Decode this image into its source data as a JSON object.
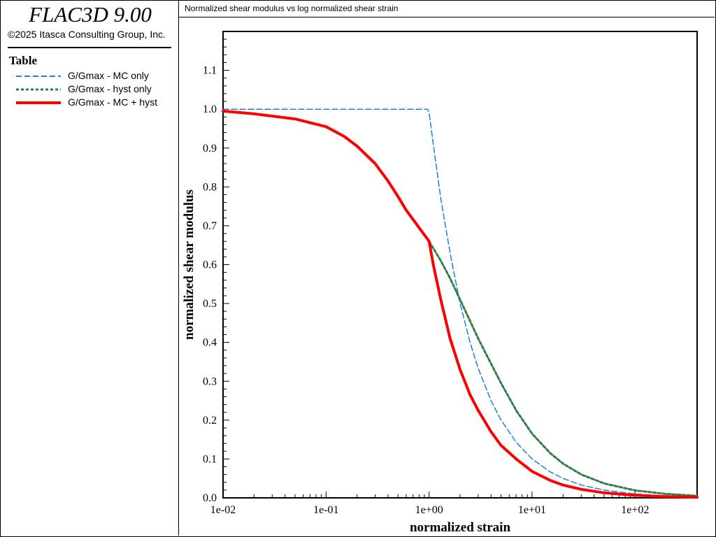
{
  "app": {
    "title": "FLAC3D 9.00",
    "copyright": "©2025 Itasca Consulting Group, Inc."
  },
  "legend": {
    "title": "Table",
    "items": [
      {
        "label": "G/Gmax - MC only",
        "color": "#1a7fe0",
        "style": "dashed"
      },
      {
        "label": "G/Gmax - hyst only",
        "color": "#2e7d4a",
        "style": "dotted"
      },
      {
        "label": "G/Gmax - MC + hyst",
        "color": "#ff0000",
        "style": "solid"
      }
    ]
  },
  "chart_data": {
    "type": "line",
    "title": "Normalized shear modulus vs log normalized shear strain",
    "xlabel": "normalized strain",
    "ylabel": "normalized shear modulus",
    "xscale": "log",
    "xlim": [
      0.01,
      400
    ],
    "ylim": [
      0,
      1.2
    ],
    "xticks": [
      "1e-02",
      "1e-01",
      "1e+00",
      "1e+01",
      "1e+02"
    ],
    "xtick_values": [
      0.01,
      0.1,
      1,
      10,
      100
    ],
    "yticks": [
      "0.0",
      "0.1",
      "0.2",
      "0.3",
      "0.4",
      "0.5",
      "0.6",
      "0.7",
      "0.8",
      "0.9",
      "1.0",
      "1.1"
    ],
    "ytick_values": [
      0,
      0.1,
      0.2,
      0.3,
      0.4,
      0.5,
      0.6,
      0.7,
      0.8,
      0.9,
      1.0,
      1.1
    ],
    "series": [
      {
        "name": "G/Gmax - MC only",
        "color": "#1a7fe0",
        "style": "dashed",
        "x": [
          0.01,
          0.1,
          0.97,
          1.0,
          1.1,
          1.3,
          1.6,
          2.0,
          2.5,
          3.0,
          4.0,
          5.0,
          7.0,
          10,
          15,
          20,
          30,
          50,
          100,
          200,
          400
        ],
        "y": [
          1.0,
          1.0,
          1.0,
          0.99,
          0.91,
          0.77,
          0.63,
          0.5,
          0.4,
          0.333,
          0.25,
          0.2,
          0.143,
          0.1,
          0.067,
          0.05,
          0.033,
          0.02,
          0.01,
          0.005,
          0.0025
        ]
      },
      {
        "name": "G/Gmax - hyst only",
        "color": "#2e7d4a",
        "style": "dotted",
        "x": [
          1.0,
          1.3,
          1.6,
          2.0,
          2.5,
          3.0,
          4.0,
          5.0,
          7.0,
          10,
          15,
          20,
          30,
          50,
          100,
          200,
          400
        ],
        "y": [
          0.66,
          0.61,
          0.565,
          0.51,
          0.455,
          0.41,
          0.345,
          0.295,
          0.225,
          0.165,
          0.115,
          0.088,
          0.06,
          0.037,
          0.019,
          0.01,
          0.005
        ]
      },
      {
        "name": "G/Gmax - MC + hyst",
        "color": "#ff0000",
        "style": "solid",
        "x": [
          0.01,
          0.02,
          0.05,
          0.1,
          0.15,
          0.2,
          0.3,
          0.4,
          0.5,
          0.6,
          0.8,
          1.0,
          1.1,
          1.3,
          1.6,
          2.0,
          2.5,
          3.0,
          4.0,
          5.0,
          7.0,
          10,
          15,
          20,
          30,
          50,
          100,
          200,
          400
        ],
        "y": [
          0.995,
          0.988,
          0.975,
          0.955,
          0.93,
          0.905,
          0.86,
          0.815,
          0.775,
          0.74,
          0.695,
          0.66,
          0.6,
          0.51,
          0.41,
          0.33,
          0.265,
          0.225,
          0.17,
          0.135,
          0.1,
          0.068,
          0.045,
          0.033,
          0.022,
          0.013,
          0.0065,
          0.0033,
          0.0017
        ]
      }
    ]
  }
}
